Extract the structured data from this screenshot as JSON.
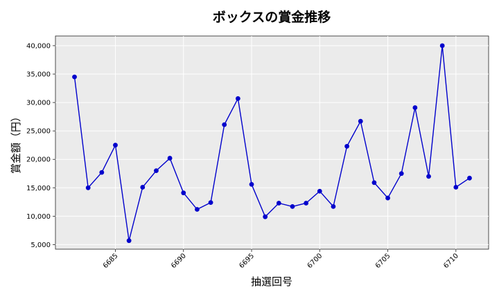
{
  "chart_data": {
    "type": "line",
    "title": "ボックスの賞金推移",
    "xlabel": "抽選回号",
    "ylabel": "賞金額（円）",
    "xlim": [
      6680.6,
      6712.4
    ],
    "ylim": [
      4200,
      41700
    ],
    "x_ticks": [
      6685,
      6690,
      6695,
      6700,
      6705,
      6710
    ],
    "y_ticks": [
      5000,
      10000,
      15000,
      20000,
      25000,
      30000,
      35000,
      40000
    ],
    "y_tick_labels": [
      "5,000",
      "10,000",
      "15,000",
      "20,000",
      "25,000",
      "30,000",
      "35,000",
      "40,000"
    ],
    "grid": true,
    "series": [
      {
        "color": "#0000cc",
        "x": [
          6682,
          6683,
          6684,
          6685,
          6686,
          6687,
          6688,
          6689,
          6690,
          6691,
          6692,
          6693,
          6694,
          6695,
          6696,
          6697,
          6698,
          6699,
          6700,
          6701,
          6702,
          6703,
          6704,
          6705,
          6706,
          6707,
          6708,
          6709,
          6710,
          6711
        ],
        "y": [
          34500,
          15000,
          17700,
          22500,
          5700,
          15100,
          18000,
          20200,
          14100,
          11200,
          12400,
          26100,
          30700,
          15600,
          9900,
          12300,
          11700,
          12300,
          14400,
          11700,
          22300,
          26700,
          15900,
          13200,
          17500,
          29100,
          17000,
          40000,
          15100,
          16700
        ]
      }
    ]
  }
}
